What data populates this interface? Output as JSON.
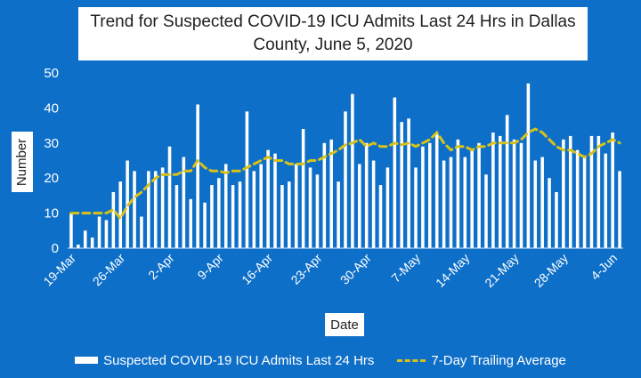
{
  "chart_data": {
    "type": "bar",
    "title": "Trend for Suspected COVID-19 ICU Admits Last 24 Hrs in Dallas County, June 5, 2020",
    "xlabel": "Date",
    "ylabel": "Number",
    "ylim": [
      0,
      50
    ],
    "yticks": [
      0,
      10,
      20,
      30,
      40,
      50
    ],
    "grid": false,
    "legend_position": "bottom",
    "x_tick_labels": [
      {
        "index": 0,
        "label": "19-Mar"
      },
      {
        "index": 7,
        "label": "26-Mar"
      },
      {
        "index": 14,
        "label": "2-Apr"
      },
      {
        "index": 21,
        "label": "9-Apr"
      },
      {
        "index": 28,
        "label": "16-Apr"
      },
      {
        "index": 35,
        "label": "23-Apr"
      },
      {
        "index": 42,
        "label": "30-Apr"
      },
      {
        "index": 49,
        "label": "7-May"
      },
      {
        "index": 56,
        "label": "14-May"
      },
      {
        "index": 63,
        "label": "21-May"
      },
      {
        "index": 70,
        "label": "28-May"
      },
      {
        "index": 77,
        "label": "4-Jun"
      }
    ],
    "series": [
      {
        "name": "Suspected COVID-19 ICU Admits Last 24 Hrs",
        "type": "bar",
        "color": "#ffffff",
        "values": [
          10,
          1,
          5,
          3,
          9,
          8,
          16,
          19,
          25,
          22,
          9,
          22,
          22,
          23,
          29,
          18,
          26,
          14,
          41,
          13,
          18,
          20,
          24,
          18,
          19,
          39,
          22,
          24,
          28,
          27,
          18,
          19,
          24,
          34,
          23,
          21,
          30,
          31,
          19,
          39,
          44,
          24,
          30,
          25,
          18,
          23,
          43,
          36,
          37,
          23,
          29,
          30,
          33,
          25,
          26,
          31,
          26,
          28,
          30,
          21,
          33,
          32,
          38,
          31,
          30,
          47,
          25,
          26,
          20,
          16,
          31,
          32,
          28,
          26,
          32,
          32,
          27,
          33,
          22
        ]
      },
      {
        "name": "7-Day Trailing Average",
        "type": "line",
        "color": "#D8C21A",
        "dashed": true,
        "values": [
          10,
          10,
          10,
          10,
          10,
          10,
          11,
          8.5,
          12,
          14.5,
          16,
          18,
          20,
          21,
          21,
          21,
          22,
          22,
          25,
          23,
          22,
          22,
          21.5,
          22,
          22,
          23,
          24,
          25,
          26,
          25,
          25,
          24,
          24,
          24,
          25,
          25,
          26,
          27,
          28,
          29.5,
          30,
          31,
          29,
          30,
          29,
          29,
          30,
          29.5,
          30,
          29,
          30,
          31,
          33,
          30,
          28,
          29,
          29,
          28,
          29,
          29,
          30,
          30,
          30,
          30,
          31,
          33,
          34,
          33,
          31,
          29,
          28,
          28,
          27,
          26,
          27,
          29,
          30,
          31,
          30
        ]
      }
    ]
  }
}
